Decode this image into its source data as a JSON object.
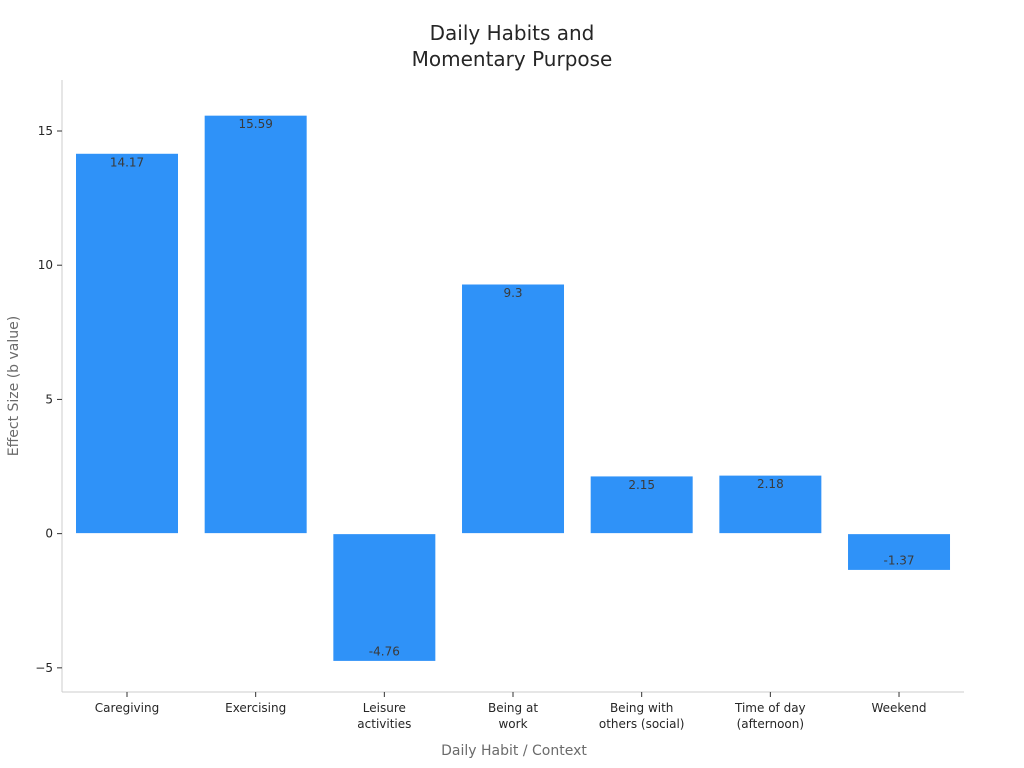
{
  "chart_data": {
    "type": "bar",
    "title": [
      "Daily Habits and",
      "Momentary Purpose"
    ],
    "xlabel": "Daily Habit / Context",
    "ylabel": "Effect Size (b value)",
    "categories": [
      [
        "Caregiving"
      ],
      [
        "Exercising"
      ],
      [
        "Leisure",
        "activities"
      ],
      [
        "Being at",
        "work"
      ],
      [
        "Being with",
        "others (social)"
      ],
      [
        "Time of day",
        "(afternoon)"
      ],
      [
        "Weekend"
      ]
    ],
    "values": [
      14.17,
      15.59,
      -4.76,
      9.3,
      2.15,
      2.18,
      -1.37
    ],
    "value_labels": [
      "14.17",
      "15.59",
      "-4.76",
      "9.3",
      "2.15",
      "2.18",
      "-1.37"
    ],
    "ylim": [
      -5.9,
      16.9
    ],
    "yticks": [
      -5,
      0,
      5,
      10,
      15
    ],
    "ytick_labels": [
      "−5",
      "0",
      "5",
      "10",
      "15"
    ],
    "grid": false,
    "legend": "none",
    "bar_color": "#2f92f8",
    "axis_color": "#cccccc",
    "text_color": "#262626"
  }
}
